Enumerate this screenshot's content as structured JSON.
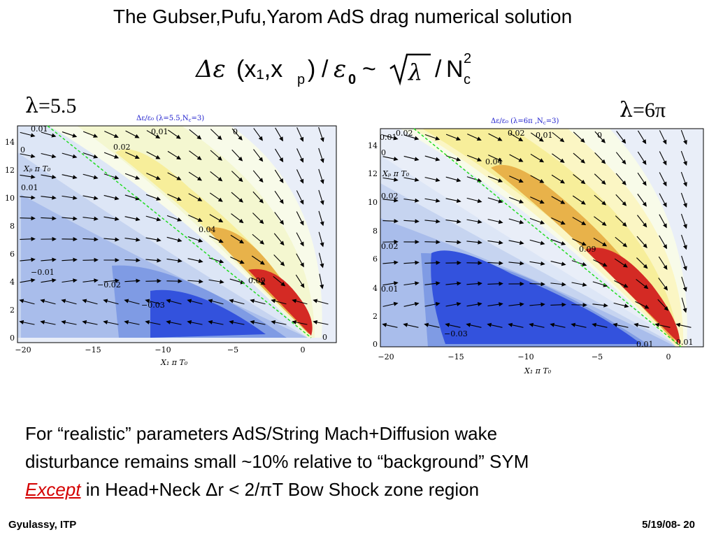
{
  "slide": {
    "title": "The Gubser,Pufu,Yarom AdS drag numerical solution",
    "formula": {
      "delta_eps": "Δε",
      "args": "(x₁,x",
      "sub_p": "p",
      "close": ")",
      "slash": "/",
      "eps": "ε",
      "sub_0": "0",
      "tilde": "~",
      "sqrt_arg": "λ",
      "slash2": "/",
      "N": "N",
      "sup_2": "2",
      "sub_c": "c"
    },
    "lambda_left": {
      "sym": "λ",
      "rest": "=5.5"
    },
    "lambda_right": {
      "sym": "λ",
      "rest": "=6π"
    },
    "body_lines": [
      "For “realistic” parameters AdS/String Mach+Diffusion wake",
      "disturbance remains small ~10%  relative to “background” SYM"
    ],
    "line3": {
      "except": "Except",
      "rest": " in Head+Neck  Δr < 2/πT  Bow Shock zone region"
    },
    "footer_left": "Gyulassy, ITP",
    "footer_right": "5/19/08-   20"
  },
  "plots": [
    {
      "title": "Δε/ε₀   (λ=5.5,N",
      "title_sub": "c",
      "title_end": "=3)",
      "xlabel": "X₁ π T₀",
      "ylabel": "Xₚ π T₀",
      "xticks": [
        "−20",
        "−15",
        "−10",
        "−5",
        "0"
      ],
      "yticks": [
        "0",
        "2",
        "4",
        "6",
        "8",
        "10",
        "12",
        "14"
      ],
      "contour_labels": [
        "0.01",
        "0.01",
        "0",
        "0",
        "0.02",
        "0.01",
        "0.04",
        "−0.01",
        "−0.02",
        "0.09",
        "−0.03",
        "0"
      ]
    },
    {
      "title": "Δε/ε₀   (λ=6π ,N",
      "title_sub": "c",
      "title_end": "=3)",
      "xlabel": "X₁ π T₀",
      "ylabel": "Xₚ π T₀",
      "xticks": [
        "−20",
        "−15",
        "−10",
        "−5",
        "0"
      ],
      "yticks": [
        "0",
        "2",
        "4",
        "6",
        "8",
        "10",
        "12",
        "14"
      ],
      "contour_labels": [
        "0.01",
        "0.02",
        "0.02",
        "0.01",
        "0",
        "0",
        "0.04",
        "0.02",
        "0.02",
        "0.09",
        "0.01",
        "−0.03",
        "0.01",
        "0.01"
      ]
    }
  ]
}
